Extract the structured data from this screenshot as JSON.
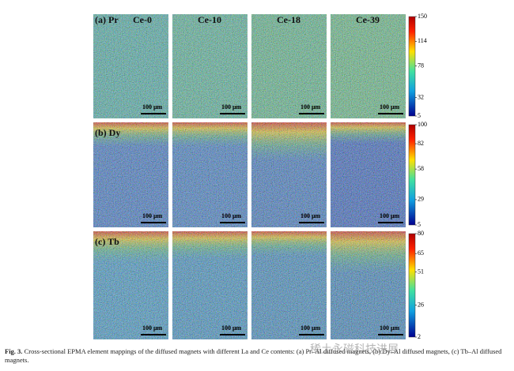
{
  "columns": [
    "Ce-0",
    "Ce-10",
    "Ce-18",
    "Ce-39"
  ],
  "rows": [
    {
      "label": "(a) Pr",
      "colorbar": [
        150,
        114,
        78,
        32,
        5
      ]
    },
    {
      "label": "(b) Dy",
      "colorbar": [
        100,
        82,
        58,
        29,
        5
      ]
    },
    {
      "label": "(c) Tb",
      "colorbar": [
        80,
        65,
        51,
        26,
        2
      ]
    }
  ],
  "scale_bar": "100 μm",
  "caption": {
    "label": "Fig. 3.",
    "text": "Cross-sectional EPMA element mappings of the diffused magnets with different La and Ce contents: (a) Pr–Al diffused magnets, (b) Dy–Al diffused magnets, (c) Tb–Al diffused magnets."
  },
  "watermark": "稀土永磁科技进展"
}
